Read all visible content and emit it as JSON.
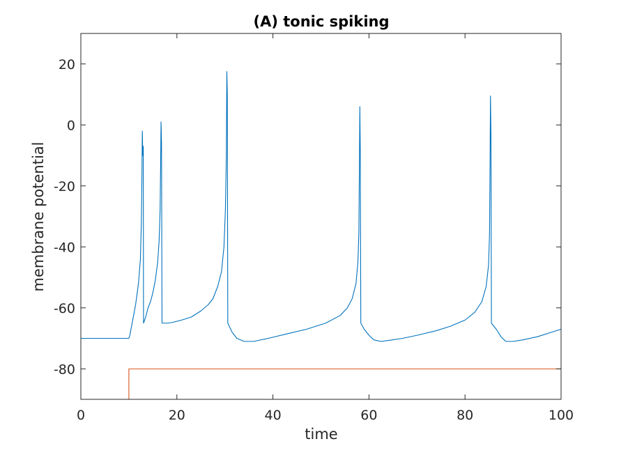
{
  "chart_data": {
    "type": "line",
    "title": "(A) tonic spiking",
    "xlabel": "time",
    "ylabel": "membrane potential",
    "xlim": [
      0,
      100
    ],
    "ylim": [
      -90,
      30
    ],
    "xticks": [
      0,
      20,
      40,
      60,
      80,
      100
    ],
    "yticks": [
      -80,
      -60,
      -40,
      -20,
      0,
      20
    ],
    "xtick_labels": [
      "0",
      "20",
      "40",
      "60",
      "80",
      "100"
    ],
    "ytick_labels": [
      "-80",
      "-60",
      "-40",
      "-20",
      "0",
      "20"
    ],
    "grid": false,
    "legend": "none",
    "series": [
      {
        "color": "#0072BD",
        "points": [
          [
            0,
            -70
          ],
          [
            10,
            -70
          ],
          [
            10.2,
            -69
          ],
          [
            10.8,
            -64
          ],
          [
            11.4,
            -59
          ],
          [
            12,
            -52
          ],
          [
            12.4,
            -44
          ],
          [
            12.6,
            -32
          ],
          [
            12.7,
            -20
          ],
          [
            12.8,
            -2
          ],
          [
            12.9,
            -10
          ],
          [
            13,
            -7
          ],
          [
            13.05,
            -65
          ],
          [
            13.5,
            -63
          ],
          [
            14,
            -60
          ],
          [
            14.5,
            -58
          ],
          [
            15,
            -55
          ],
          [
            15.5,
            -51
          ],
          [
            16,
            -45
          ],
          [
            16.3,
            -38
          ],
          [
            16.5,
            -28
          ],
          [
            16.6,
            -15
          ],
          [
            16.7,
            1
          ],
          [
            16.8,
            -6
          ],
          [
            16.9,
            -65
          ],
          [
            18,
            -65
          ],
          [
            19,
            -64.8
          ],
          [
            21,
            -64
          ],
          [
            23,
            -63
          ],
          [
            25,
            -61
          ],
          [
            26.5,
            -59
          ],
          [
            27.5,
            -57
          ],
          [
            28.5,
            -53
          ],
          [
            29.3,
            -48
          ],
          [
            29.8,
            -40
          ],
          [
            30.1,
            -28
          ],
          [
            30.3,
            -10
          ],
          [
            30.4,
            17.5
          ],
          [
            30.5,
            10
          ],
          [
            30.6,
            -65
          ],
          [
            31.5,
            -68
          ],
          [
            32.5,
            -70
          ],
          [
            34,
            -71
          ],
          [
            36,
            -71
          ],
          [
            39,
            -70
          ],
          [
            43,
            -68.5
          ],
          [
            47,
            -67
          ],
          [
            51,
            -65
          ],
          [
            54,
            -62.5
          ],
          [
            55.5,
            -60
          ],
          [
            56.5,
            -57
          ],
          [
            57.3,
            -52
          ],
          [
            57.7,
            -45
          ],
          [
            57.9,
            -35
          ],
          [
            58,
            -15
          ],
          [
            58.1,
            6
          ],
          [
            58.2,
            -10
          ],
          [
            58.3,
            -65
          ],
          [
            59,
            -67
          ],
          [
            60,
            -69
          ],
          [
            61,
            -70.5
          ],
          [
            62.5,
            -71
          ],
          [
            64,
            -70.7
          ],
          [
            67,
            -70
          ],
          [
            70,
            -69
          ],
          [
            74,
            -67.5
          ],
          [
            77,
            -66
          ],
          [
            80,
            -64
          ],
          [
            82,
            -61.5
          ],
          [
            83.5,
            -58
          ],
          [
            84.4,
            -53
          ],
          [
            84.9,
            -46
          ],
          [
            85.1,
            -36
          ],
          [
            85.2,
            -15
          ],
          [
            85.3,
            9.5
          ],
          [
            85.4,
            -3
          ],
          [
            85.5,
            -65
          ],
          [
            86.5,
            -67
          ],
          [
            87.5,
            -69.5
          ],
          [
            88.5,
            -71
          ],
          [
            90,
            -71
          ],
          [
            92,
            -70.5
          ],
          [
            95,
            -69.5
          ],
          [
            98,
            -68
          ],
          [
            100,
            -67
          ]
        ]
      },
      {
        "color": "#D95319",
        "points": [
          [
            0,
            -90
          ],
          [
            10,
            -90
          ],
          [
            10,
            -80
          ],
          [
            100,
            -80
          ]
        ]
      }
    ]
  }
}
